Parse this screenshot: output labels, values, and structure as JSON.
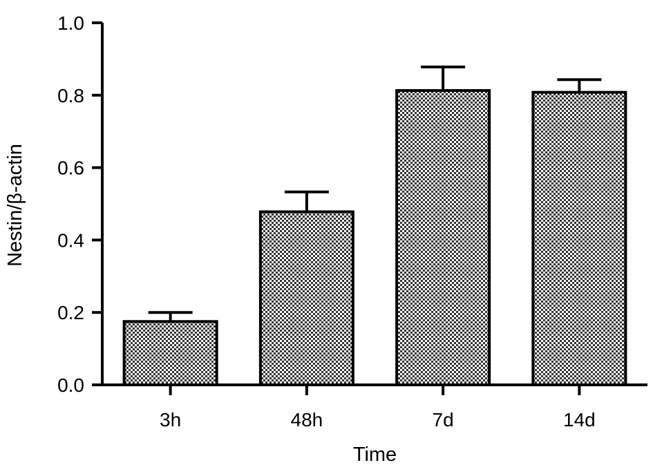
{
  "chart_data": {
    "type": "bar",
    "categories": [
      "3h",
      "48h",
      "7d",
      "14d"
    ],
    "values": [
      0.175,
      0.478,
      0.813,
      0.808
    ],
    "errors": [
      0.025,
      0.055,
      0.065,
      0.035
    ],
    "xlabel": "Time",
    "ylabel": "Nestin/β-actin",
    "ylim": [
      0,
      1.0
    ],
    "yticks": [
      "0.0",
      "0.2",
      "0.4",
      "0.6",
      "0.8",
      "1.0"
    ],
    "ytick_values": [
      0,
      0.2,
      0.4,
      0.6,
      0.8,
      1.0
    ],
    "grid": false,
    "bar_fill": "dotted-pattern",
    "bar_color": "#000000"
  }
}
